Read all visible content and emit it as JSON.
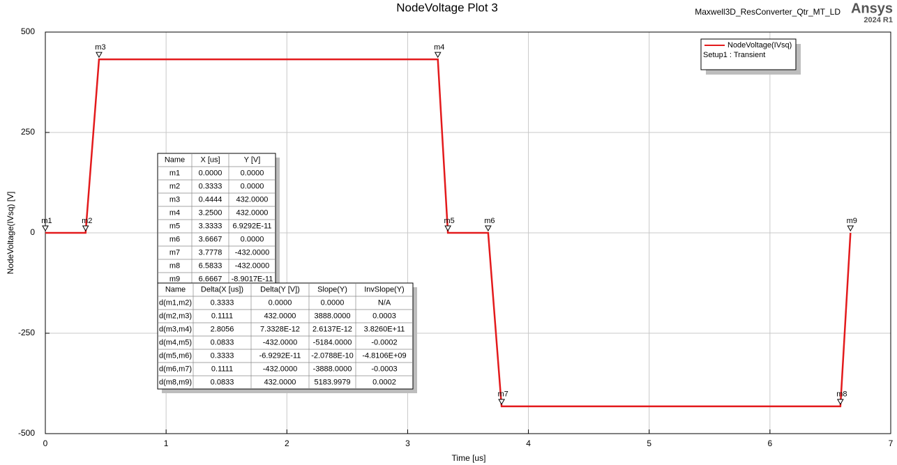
{
  "chart_data": {
    "type": "line",
    "title": "NodeVoltage Plot 3",
    "project": "Maxwell3D_ResConverter_Qtr_MT_LD",
    "brand": "Ansys",
    "version": "2024 R1",
    "x_label": "Time [us]",
    "y_label": "NodeVoltage(IVsq) [V]",
    "xlim": [
      0,
      7
    ],
    "ylim": [
      -500,
      500
    ],
    "xticks": [
      0,
      1,
      2,
      3,
      4,
      5,
      6,
      7
    ],
    "yticks": [
      -500,
      -250,
      0,
      250,
      500
    ],
    "grid": true,
    "legend_position": "upper right",
    "legend_subtitle": "Setup1 : Transient",
    "series": [
      {
        "name": "NodeVoltage(IVsq)",
        "color": "#e31a1c",
        "x": [
          0,
          0.3333,
          0.4444,
          3.25,
          3.3333,
          3.6667,
          3.7778,
          6.5833,
          6.6667
        ],
        "values": [
          0,
          0,
          432,
          432,
          6.9292e-11,
          0,
          -432,
          -432,
          -8.9017e-11
        ],
        "marker_names": [
          "m1",
          "m2",
          "m3",
          "m4",
          "m5",
          "m6",
          "m7",
          "m8",
          "m9"
        ]
      }
    ],
    "marker_table": {
      "header": [
        "Name",
        "X [us]",
        "Y [V]"
      ],
      "rows": [
        [
          "m1",
          "0.0000",
          "0.0000"
        ],
        [
          "m2",
          "0.3333",
          "0.0000"
        ],
        [
          "m3",
          "0.4444",
          "432.0000"
        ],
        [
          "m4",
          "3.2500",
          "432.0000"
        ],
        [
          "m5",
          "3.3333",
          "6.9292E-11"
        ],
        [
          "m6",
          "3.6667",
          "0.0000"
        ],
        [
          "m7",
          "3.7778",
          "-432.0000"
        ],
        [
          "m8",
          "6.5833",
          "-432.0000"
        ],
        [
          "m9",
          "6.6667",
          "-8.9017E-11"
        ]
      ]
    },
    "delta_table": {
      "header": [
        "Name",
        "Delta(X [us])",
        "Delta(Y [V])",
        "Slope(Y)",
        "InvSlope(Y)"
      ],
      "rows": [
        [
          "d(m1,m2)",
          "0.3333",
          "0.0000",
          "0.0000",
          "N/A"
        ],
        [
          "d(m2,m3)",
          "0.1111",
          "432.0000",
          "3888.0000",
          "0.0003"
        ],
        [
          "d(m3,m4)",
          "2.8056",
          "7.3328E-12",
          "2.6137E-12",
          "3.8260E+11"
        ],
        [
          "d(m4,m5)",
          "0.0833",
          "-432.0000",
          "-5184.0000",
          "-0.0002"
        ],
        [
          "d(m5,m6)",
          "0.3333",
          "-6.9292E-11",
          "-2.0788E-10",
          "-4.8106E+09"
        ],
        [
          "d(m6,m7)",
          "0.1111",
          "-432.0000",
          "-3888.0000",
          "-0.0003"
        ],
        [
          "d(m8,m9)",
          "0.0833",
          "432.0000",
          "5183.9979",
          "0.0002"
        ]
      ]
    }
  }
}
